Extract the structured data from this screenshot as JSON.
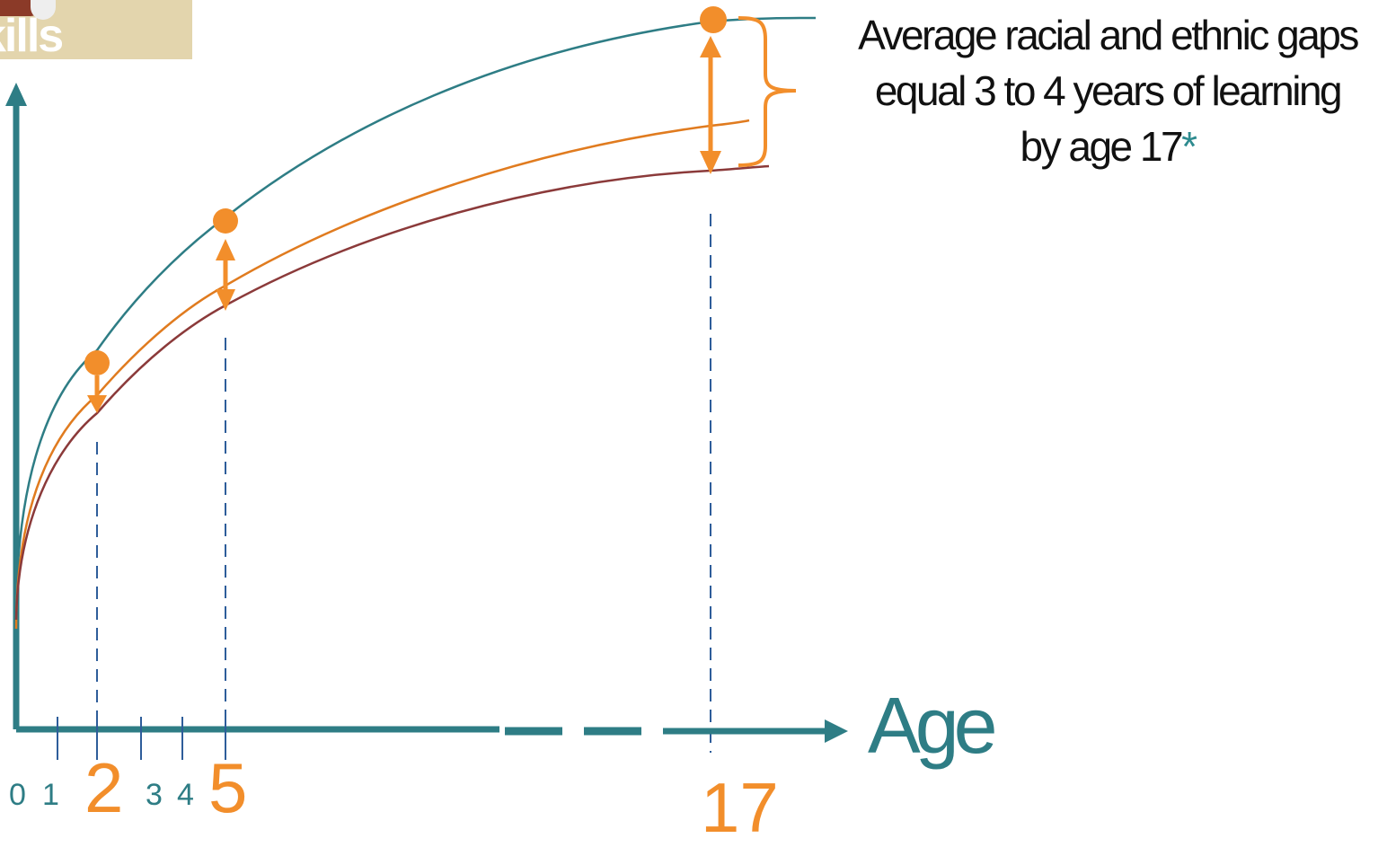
{
  "header_tag": {
    "text": "kills"
  },
  "annotation": {
    "line1": "Average racial and ethnic gaps",
    "line2": "equal 3 to 4 years of learning",
    "line3": "by age 17",
    "footnote_mark": "*"
  },
  "axis": {
    "x_label": "Age"
  },
  "ticks": {
    "t0": "0",
    "t1": "1",
    "t2": "2",
    "t3": "3",
    "t4": "4",
    "t5": "5",
    "t17": "17"
  },
  "colors": {
    "axis": "#2e7d85",
    "top_curve": "#2e7d85",
    "middle_curve": "#e07b1f",
    "bottom_curve": "#8b3a3a",
    "marker": "#f28e2b",
    "guide_line": "#2e5d9a"
  }
}
